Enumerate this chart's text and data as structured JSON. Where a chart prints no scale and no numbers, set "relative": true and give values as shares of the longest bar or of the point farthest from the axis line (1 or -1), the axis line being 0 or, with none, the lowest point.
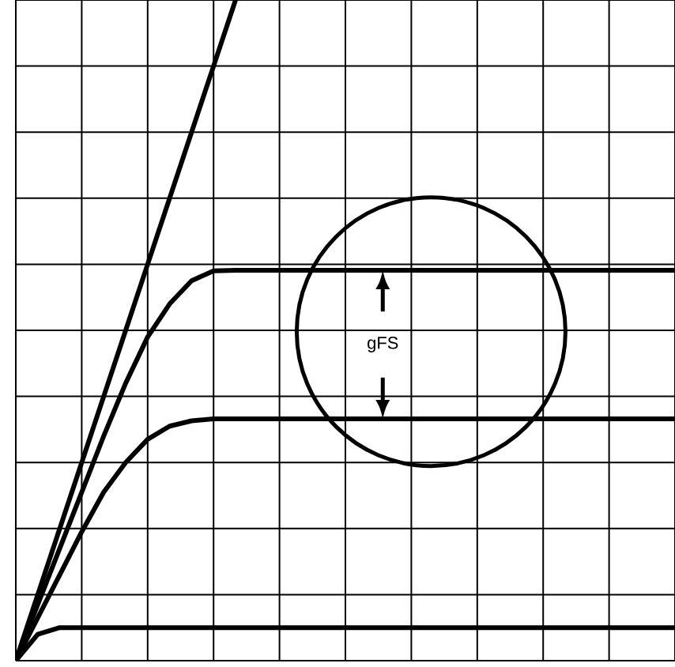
{
  "chart_data": {
    "type": "line",
    "relative": true,
    "grid": true,
    "tick_labels": false,
    "marker": "none",
    "line_style": "solid",
    "categories": [
      null,
      null,
      null,
      null,
      null,
      null,
      null,
      null,
      null,
      null,
      null,
      null,
      null,
      null,
      null,
      null,
      null,
      null,
      null,
      null,
      null,
      null,
      null,
      null,
      null,
      null,
      null,
      null,
      null,
      null,
      null
    ],
    "series": [
      {
        "color": "#000000",
        "values": [
          0,
          0.1,
          0.2,
          0.3,
          0.4,
          0.5,
          0.6,
          0.7,
          0.8,
          0.9,
          1,
          null,
          null,
          null,
          null,
          null,
          null,
          null,
          null,
          null,
          null,
          null,
          null,
          null,
          null,
          null,
          null,
          null,
          null,
          null,
          null
        ]
      },
      {
        "color": "#000000",
        "values": [
          0,
          0.085,
          0.17,
          0.255,
          0.34,
          0.42,
          0.49,
          0.54,
          0.575,
          0.59,
          0.591,
          0.591,
          0.591,
          0.591,
          0.591,
          0.591,
          0.591,
          0.591,
          0.591,
          0.591,
          0.591,
          0.591,
          0.591,
          0.591,
          0.591,
          0.591,
          0.591,
          0.591,
          0.591,
          0.591,
          0.591
        ]
      },
      {
        "color": "#000000",
        "values": [
          0,
          0.065,
          0.13,
          0.195,
          0.255,
          0.3,
          0.335,
          0.355,
          0.363,
          0.366,
          0.366,
          0.366,
          0.366,
          0.366,
          0.366,
          0.366,
          0.366,
          0.366,
          0.366,
          0.366,
          0.366,
          0.366,
          0.366,
          0.366,
          0.366,
          0.366,
          0.366,
          0.366,
          0.366,
          0.366,
          0.366
        ]
      },
      {
        "color": "#000000",
        "values": [
          0,
          0.04,
          0.05,
          0.05,
          0.05,
          0.05,
          0.05,
          0.05,
          0.05,
          0.05,
          0.05,
          0.05,
          0.05,
          0.05,
          0.05,
          0.05,
          0.05,
          0.05,
          0.05,
          0.05,
          0.05,
          0.05,
          0.05,
          0.05,
          0.05,
          0.05,
          0.05,
          0.05,
          0.05,
          0.05,
          0.05
        ]
      }
    ],
    "annotations": [
      "gFS"
    ]
  }
}
